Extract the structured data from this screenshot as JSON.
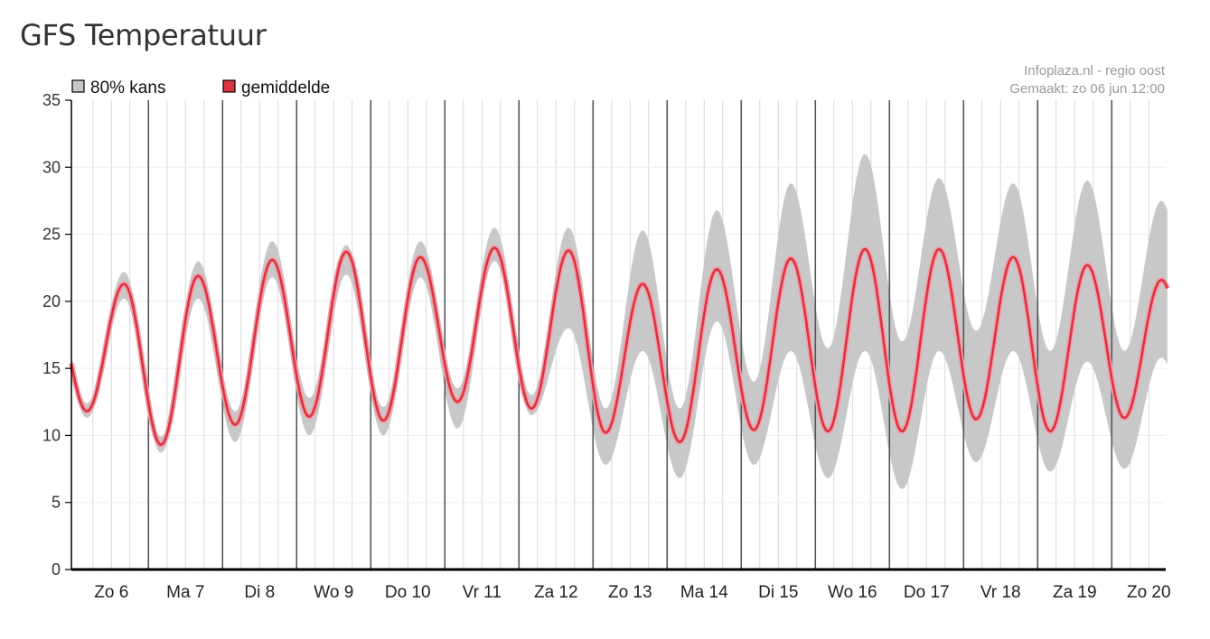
{
  "page": {
    "title": "GFS Temperatuur"
  },
  "credits": {
    "source": "Infoplaza.nl - regio oost",
    "made": "Gemaakt: zo 06 jun 12:00"
  },
  "colors": {
    "band": "#c8c8c8",
    "mean": "#d9343f",
    "mean_glow": "#f0a0a8",
    "day_line": "#555555",
    "minor_grid": "#d8d8d8",
    "axis": "#000000"
  },
  "chart_data": {
    "type": "area",
    "title": "GFS Temperatuur",
    "ylim": [
      0,
      35
    ],
    "yticks": [
      0,
      5,
      10,
      15,
      20,
      25,
      30,
      35
    ],
    "grid": true,
    "legend": {
      "placement": "top-left",
      "items": [
        {
          "name": "80% kans",
          "color": "#c8c8c8"
        },
        {
          "name": "gemiddelde",
          "color": "#d9343f"
        }
      ]
    },
    "x_start_day_offset": -0.04,
    "x_end_day": 14.75,
    "day_labels": [
      "Zo 6",
      "Ma 7",
      "Di 8",
      "Wo 9",
      "Do 10",
      "Vr 11",
      "Za 12",
      "Zo 13",
      "Ma 14",
      "Di 15",
      "Wo 16",
      "Do 17",
      "Vr 18",
      "Za 19",
      "Zo 20"
    ],
    "daily": [
      {
        "label": "Zo 6",
        "mean_min": 11.8,
        "mean_max": 21.3,
        "band_low": [
          11.3,
          20.2
        ],
        "band_high": [
          12.4,
          22.2
        ]
      },
      {
        "label": "Ma 7",
        "mean_min": 9.3,
        "mean_max": 21.9,
        "band_low": [
          8.7,
          20.2
        ],
        "band_high": [
          9.9,
          23.0
        ]
      },
      {
        "label": "Di 8",
        "mean_min": 10.8,
        "mean_max": 23.1,
        "band_low": [
          9.5,
          21.8
        ],
        "band_high": [
          11.8,
          24.5
        ]
      },
      {
        "label": "Wo 9",
        "mean_min": 11.4,
        "mean_max": 23.7,
        "band_low": [
          10.0,
          22.0
        ],
        "band_high": [
          12.8,
          24.2
        ]
      },
      {
        "label": "Do 10",
        "mean_min": 11.1,
        "mean_max": 23.3,
        "band_low": [
          10.0,
          21.8
        ],
        "band_high": [
          12.1,
          24.5
        ]
      },
      {
        "label": "Vr 11",
        "mean_min": 12.5,
        "mean_max": 24.0,
        "band_low": [
          10.5,
          23.0
        ],
        "band_high": [
          13.5,
          25.5
        ]
      },
      {
        "label": "Za 12",
        "mean_min": 12.0,
        "mean_max": 23.8,
        "band_low": [
          11.5,
          18.0
        ],
        "band_high": [
          13.0,
          25.5
        ]
      },
      {
        "label": "Zo 13",
        "mean_min": 10.2,
        "mean_max": 21.3,
        "band_low": [
          7.8,
          16.3
        ],
        "band_high": [
          12.0,
          25.3
        ]
      },
      {
        "label": "Ma 14",
        "mean_min": 9.5,
        "mean_max": 22.4,
        "band_low": [
          6.8,
          18.5
        ],
        "band_high": [
          12.0,
          26.8
        ]
      },
      {
        "label": "Di 15",
        "mean_min": 10.4,
        "mean_max": 23.2,
        "band_low": [
          7.8,
          16.3
        ],
        "band_high": [
          14.0,
          28.8
        ]
      },
      {
        "label": "Wo 16",
        "mean_min": 10.3,
        "mean_max": 23.9,
        "band_low": [
          6.8,
          16.3
        ],
        "band_high": [
          16.5,
          31.0
        ]
      },
      {
        "label": "Do 17",
        "mean_min": 10.3,
        "mean_max": 23.9,
        "band_low": [
          6.0,
          16.3
        ],
        "band_high": [
          17.0,
          29.2
        ]
      },
      {
        "label": "Vr 18",
        "mean_min": 11.2,
        "mean_max": 23.3,
        "band_low": [
          8.0,
          16.3
        ],
        "band_high": [
          17.8,
          28.8
        ]
      },
      {
        "label": "Za 19",
        "mean_min": 10.3,
        "mean_max": 22.7,
        "band_low": [
          7.3,
          15.5
        ],
        "band_high": [
          16.3,
          29.0
        ]
      },
      {
        "label": "Zo 20",
        "mean_min": 11.3,
        "mean_max": 21.6,
        "band_low": [
          7.5,
          15.8
        ],
        "band_high": [
          16.3,
          27.5
        ]
      }
    ]
  }
}
